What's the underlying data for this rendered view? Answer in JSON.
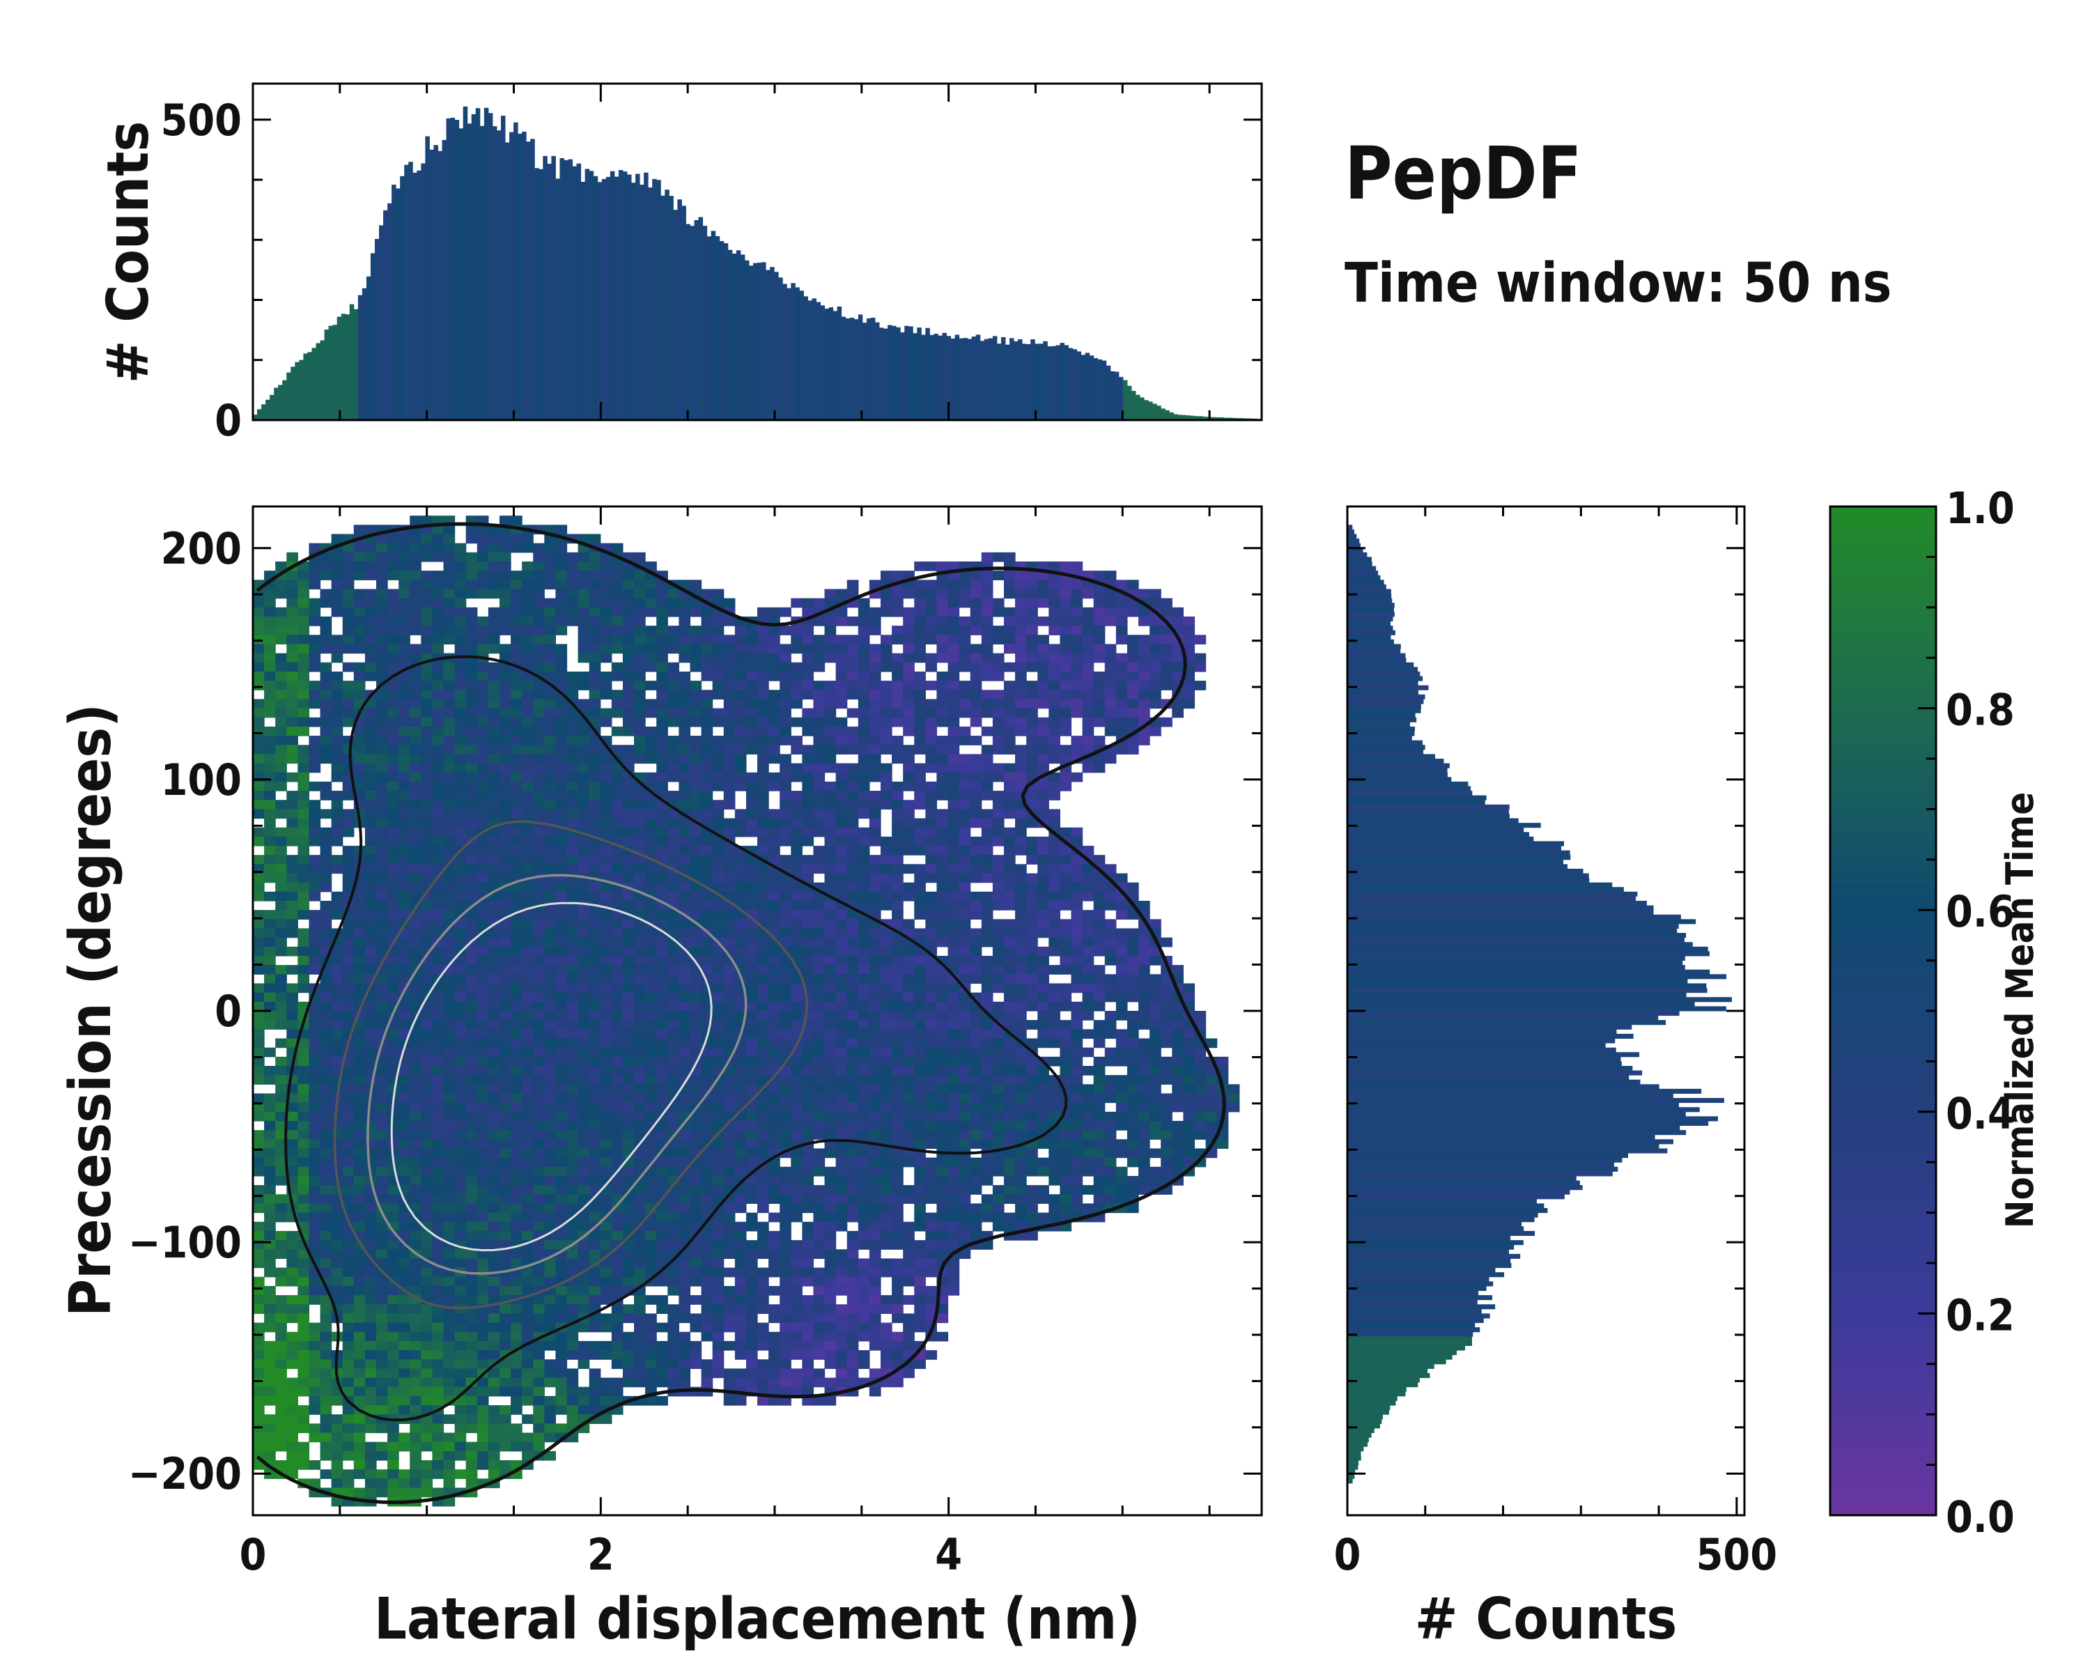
{
  "title": "PepDF",
  "subtitle": "Time window: 50 ns",
  "colors": {
    "cmap": [
      "#6a35a0",
      "#3b3b9a",
      "#25407f",
      "#0f4a70",
      "#1d6b4f",
      "#228b28"
    ],
    "hist_fill": "#0f4a70",
    "contour_outer": "#111111",
    "contour_inner": "#8c8c8c",
    "contour_core": "#dcdcdc"
  },
  "chart_data": [
    {
      "id": "main",
      "type": "heatmap",
      "xlabel": "Lateral displacement (nm)",
      "ylabel": "Precession (degrees)",
      "xlim": [
        0,
        5.8
      ],
      "ylim": [
        -218,
        218
      ],
      "xticks": [
        0,
        2,
        4
      ],
      "xtick_labels": [
        "0",
        "2",
        "4"
      ],
      "yticks": [
        200,
        100,
        0,
        -100,
        -200
      ],
      "ytick_labels": [
        "200",
        "100",
        "0",
        "−100",
        "−200"
      ],
      "clusters": [
        {
          "x": 1.9,
          "y": 15,
          "sx": 0.85,
          "sy": 45,
          "w": 1.0
        },
        {
          "x": 1.5,
          "y": -40,
          "sx": 0.8,
          "sy": 40,
          "w": 0.85
        },
        {
          "x": 1.3,
          "y": -95,
          "sx": 0.7,
          "sy": 35,
          "w": 0.7
        },
        {
          "x": 1.2,
          "y": 120,
          "sx": 0.8,
          "sy": 45,
          "w": 0.45
        },
        {
          "x": 4.2,
          "y": -45,
          "sx": 0.7,
          "sy": 25,
          "w": 0.35
        },
        {
          "x": 4.3,
          "y": 150,
          "sx": 0.9,
          "sy": 35,
          "w": 0.12
        },
        {
          "x": 3.2,
          "y": -130,
          "sx": 0.6,
          "sy": 30,
          "w": 0.12
        },
        {
          "x": 0.8,
          "y": -165,
          "sx": 0.5,
          "sy": 25,
          "w": 0.35
        },
        {
          "x": 3.8,
          "y": 10,
          "sx": 0.8,
          "sy": 40,
          "w": 0.3
        }
      ]
    },
    {
      "id": "top-histogram",
      "type": "bar",
      "ylabel": "# Counts",
      "xlim": [
        0,
        5.8
      ],
      "ylim": [
        0,
        560
      ],
      "yticks": [
        0,
        500
      ],
      "ytick_labels": [
        "0",
        "500"
      ],
      "x": [
        0.0,
        0.3,
        0.6,
        0.8,
        1.0,
        1.25,
        1.5,
        1.7,
        1.9,
        2.1,
        2.3,
        2.5,
        2.7,
        3.0,
        3.3,
        3.6,
        4.0,
        4.4,
        4.7,
        4.9,
        5.1,
        5.3,
        5.5,
        5.8
      ],
      "values": [
        5,
        110,
        195,
        370,
        455,
        505,
        480,
        420,
        410,
        405,
        390,
        340,
        300,
        240,
        190,
        160,
        140,
        130,
        125,
        95,
        40,
        10,
        5,
        2
      ]
    },
    {
      "id": "right-histogram",
      "type": "bar",
      "xlabel": "# Counts",
      "xlim": [
        0,
        510
      ],
      "xticks": [
        0,
        500
      ],
      "xtick_labels": [
        "0",
        "500"
      ],
      "y": [
        -205,
        -190,
        -170,
        -155,
        -140,
        -120,
        -100,
        -80,
        -65,
        -50,
        -40,
        -25,
        -10,
        0,
        15,
        30,
        45,
        60,
        80,
        100,
        120,
        140,
        160,
        180,
        200,
        210
      ],
      "values": [
        5,
        20,
        60,
        110,
        170,
        180,
        220,
        260,
        370,
        440,
        460,
        360,
        340,
        460,
        470,
        440,
        400,
        300,
        240,
        140,
        80,
        100,
        60,
        60,
        20,
        5
      ]
    },
    {
      "id": "colorbar",
      "type": "colorbar",
      "label": "Normalized Mean Time",
      "range": [
        0,
        1
      ],
      "ticks": [
        0.0,
        0.2,
        0.4,
        0.6,
        0.8,
        1.0
      ],
      "tick_labels": [
        "0.0",
        "0.2",
        "0.4",
        "0.6",
        "0.8",
        "1.0"
      ]
    }
  ]
}
